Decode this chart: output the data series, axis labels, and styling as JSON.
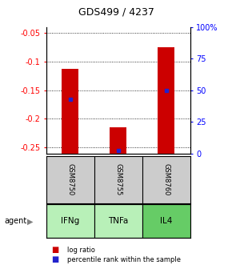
{
  "title": "GDS499 / 4237",
  "samples": [
    "GSM8750",
    "GSM8755",
    "GSM8760"
  ],
  "agents": [
    "IFNg",
    "TNFa",
    "IL4"
  ],
  "log_ratios": [
    -0.113,
    -0.215,
    -0.075
  ],
  "percentiles": [
    43,
    2,
    50
  ],
  "ylim": [
    -0.26,
    -0.04
  ],
  "yticks_left": [
    -0.05,
    -0.1,
    -0.15,
    -0.2,
    -0.25
  ],
  "yticks_right_pct": [
    0,
    25,
    50,
    75,
    100
  ],
  "bar_color": "#cc0000",
  "percentile_color": "#2222cc",
  "sample_box_color": "#cccccc",
  "agent_colors": [
    "#b8f0b8",
    "#b8f0b8",
    "#66cc66"
  ],
  "legend_ratio_color": "#cc0000",
  "legend_pct_color": "#2222cc",
  "background_color": "#ffffff",
  "title_fontsize": 9,
  "tick_fontsize": 7,
  "bar_width": 0.35
}
